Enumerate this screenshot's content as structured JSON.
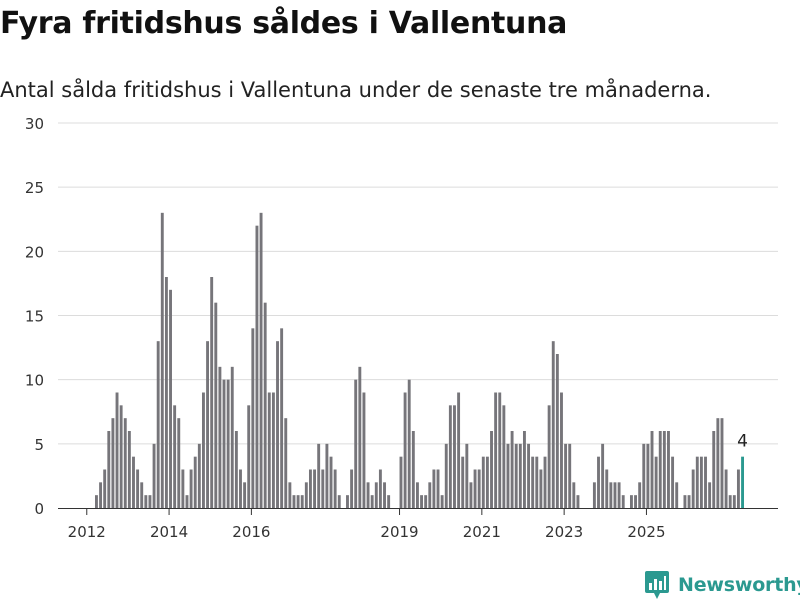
{
  "title": "Fyra fritidshus såldes i Vallentuna",
  "subtitle": "Antal sålda fritidshus i Vallentuna under de senaste tre månaderna.",
  "brand": {
    "name": "Newsworthy",
    "icon": "newsworthy-logo-icon",
    "color": "#2b9990"
  },
  "chart_data": {
    "type": "bar",
    "title": "",
    "xlabel": "",
    "ylabel": "",
    "ylim": [
      0,
      30
    ],
    "yticks": [
      0,
      5,
      10,
      15,
      20,
      25,
      30
    ],
    "xtick_labels": [
      "2012",
      "2014",
      "2016",
      "2019",
      "2021",
      "2023",
      "2025"
    ],
    "grid": true,
    "bar_color": "#76757a",
    "highlight_color": "#2b9990",
    "highlight_label": "4",
    "series": [
      {
        "values": [
          1,
          2,
          3,
          6,
          7,
          9,
          8,
          7,
          6,
          4,
          3,
          2,
          1,
          1,
          5,
          13,
          23,
          18,
          17,
          8,
          7,
          3,
          1,
          3,
          4,
          5,
          9,
          13,
          18,
          16,
          11,
          10,
          10,
          11,
          6,
          3,
          2,
          8,
          14,
          22,
          23,
          16,
          9,
          9,
          13,
          14,
          7,
          2,
          1,
          1,
          1,
          2,
          3,
          3,
          5,
          3,
          5,
          4,
          3,
          1,
          0,
          1,
          3,
          10,
          11,
          9,
          2,
          1,
          2,
          3,
          2,
          1,
          0,
          0,
          4,
          9,
          10,
          6,
          2,
          1,
          1,
          2,
          3,
          3,
          1,
          5,
          8,
          8,
          9,
          4,
          5,
          2,
          3,
          3,
          4,
          4,
          6,
          9,
          9,
          8,
          5,
          6,
          5,
          5,
          6,
          5,
          4,
          4,
          3,
          4,
          8,
          13,
          12,
          9,
          5,
          5,
          2,
          1,
          0,
          0,
          0,
          2,
          4,
          5,
          3,
          2,
          2,
          2,
          1,
          0,
          1,
          1,
          2,
          5,
          5,
          6,
          4,
          6,
          6,
          6,
          4,
          2,
          0,
          1,
          1,
          3,
          4,
          4,
          4,
          2,
          6,
          7,
          7,
          3,
          1,
          1,
          3,
          4
        ]
      }
    ]
  }
}
